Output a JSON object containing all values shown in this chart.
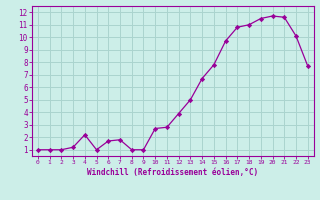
{
  "x": [
    0,
    1,
    2,
    3,
    4,
    5,
    6,
    7,
    8,
    9,
    10,
    11,
    12,
    13,
    14,
    15,
    16,
    17,
    18,
    19,
    20,
    21,
    22,
    23
  ],
  "y": [
    1,
    1,
    1,
    1.2,
    2.2,
    1,
    1.7,
    1.8,
    1,
    1,
    2.7,
    2.8,
    3.9,
    5.0,
    6.7,
    7.8,
    9.7,
    10.8,
    11.0,
    11.5,
    11.7,
    11.6,
    10.1,
    7.7
  ],
  "line_color": "#990099",
  "marker": "D",
  "marker_size": 2.2,
  "bg_color": "#cceee8",
  "grid_color": "#aad4ce",
  "xlabel": "Windchill (Refroidissement éolien,°C)",
  "xlim": [
    -0.5,
    23.5
  ],
  "ylim": [
    0.5,
    12.5
  ],
  "xticks": [
    0,
    1,
    2,
    3,
    4,
    5,
    6,
    7,
    8,
    9,
    10,
    11,
    12,
    13,
    14,
    15,
    16,
    17,
    18,
    19,
    20,
    21,
    22,
    23
  ],
  "yticks": [
    1,
    2,
    3,
    4,
    5,
    6,
    7,
    8,
    9,
    10,
    11,
    12
  ],
  "tick_color": "#990099",
  "label_color": "#990099"
}
